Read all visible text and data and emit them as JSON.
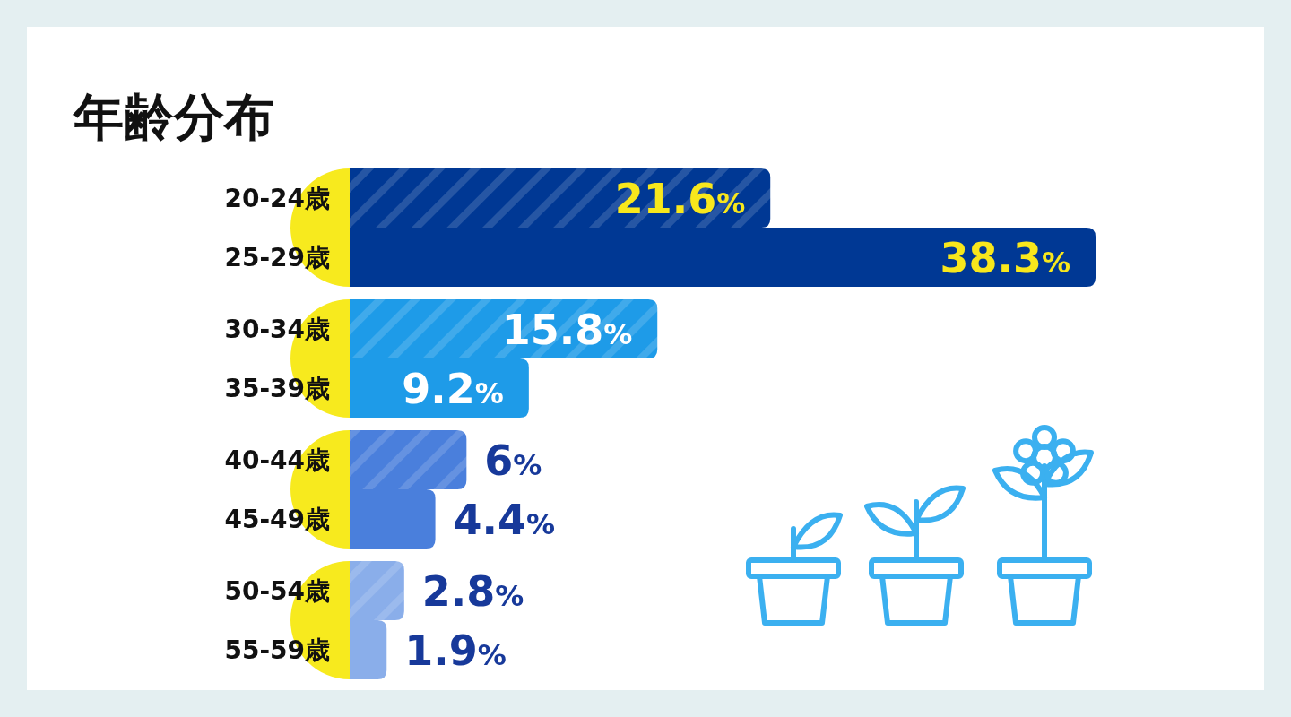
{
  "chart_data": {
    "type": "bar",
    "orientation": "horizontal",
    "title": "年齢分布",
    "categories": [
      "20-24歳",
      "25-29歳",
      "30-34歳",
      "35-39歳",
      "40-44歳",
      "45-49歳",
      "50-54歳",
      "55-59歳"
    ],
    "values": [
      21.6,
      38.3,
      15.8,
      9.2,
      6,
      4.4,
      2.8,
      1.9
    ],
    "colors": [
      "#003894",
      "#003894",
      "#1e9be8",
      "#1e9be8",
      "#4a7fdc",
      "#4a7fdc",
      "#8aaeea",
      "#8aaeea"
    ],
    "value_labels": [
      "21.6%",
      "38.3%",
      "15.8%",
      "9.2%",
      "6%",
      "4.4%",
      "2.8%",
      "1.9%"
    ]
  }
}
